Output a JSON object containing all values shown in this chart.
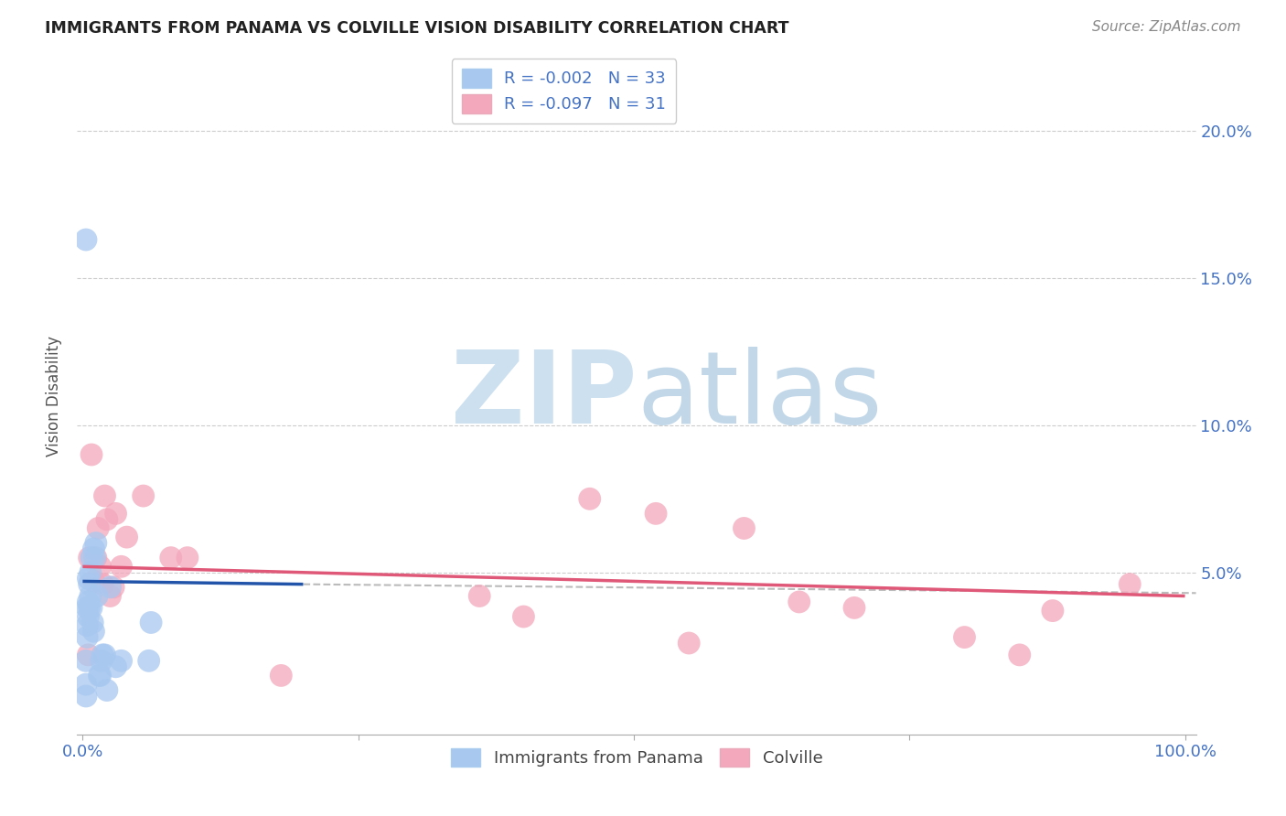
{
  "title": "IMMIGRANTS FROM PANAMA VS COLVILLE VISION DISABILITY CORRELATION CHART",
  "source": "Source: ZipAtlas.com",
  "ylabel": "Vision Disability",
  "legend_label1": "Immigrants from Panama",
  "legend_label2": "Colville",
  "R1": -0.002,
  "N1": 33,
  "R2": -0.097,
  "N2": 31,
  "color1": "#a8c8f0",
  "color2": "#f4a8bc",
  "line_color1": "#2255aa",
  "line_color2": "#e05878",
  "line_color_grey": "#bbbbbb",
  "watermark_color": "#cce0f0",
  "xlim": [
    -0.005,
    1.01
  ],
  "ylim": [
    -0.005,
    0.225
  ],
  "ytick_vals": [
    0.05,
    0.1,
    0.15,
    0.2
  ],
  "ytick_labels": [
    "5.0%",
    "10.0%",
    "15.0%",
    "20.0%"
  ],
  "xtick_vals": [
    0.0,
    1.0
  ],
  "xtick_labels": [
    "0.0%",
    "100.0%"
  ],
  "blue_x": [
    0.003,
    0.003,
    0.003,
    0.004,
    0.004,
    0.004,
    0.005,
    0.005,
    0.005,
    0.006,
    0.006,
    0.007,
    0.007,
    0.008,
    0.008,
    0.009,
    0.01,
    0.01,
    0.011,
    0.012,
    0.013,
    0.015,
    0.016,
    0.017,
    0.018,
    0.02,
    0.022,
    0.025,
    0.03,
    0.035,
    0.06,
    0.062,
    0.003
  ],
  "blue_y": [
    0.008,
    0.012,
    0.02,
    0.028,
    0.032,
    0.038,
    0.035,
    0.04,
    0.048,
    0.038,
    0.046,
    0.042,
    0.05,
    0.038,
    0.055,
    0.033,
    0.03,
    0.058,
    0.055,
    0.06,
    0.042,
    0.015,
    0.015,
    0.02,
    0.022,
    0.022,
    0.01,
    0.045,
    0.018,
    0.02,
    0.02,
    0.033,
    0.163
  ],
  "pink_x": [
    0.005,
    0.006,
    0.008,
    0.01,
    0.012,
    0.014,
    0.016,
    0.018,
    0.02,
    0.022,
    0.025,
    0.028,
    0.03,
    0.035,
    0.04,
    0.055,
    0.08,
    0.095,
    0.18,
    0.36,
    0.4,
    0.46,
    0.52,
    0.55,
    0.6,
    0.65,
    0.7,
    0.8,
    0.85,
    0.88,
    0.95
  ],
  "pink_y": [
    0.022,
    0.055,
    0.09,
    0.047,
    0.055,
    0.065,
    0.052,
    0.046,
    0.076,
    0.068,
    0.042,
    0.045,
    0.07,
    0.052,
    0.062,
    0.076,
    0.055,
    0.055,
    0.015,
    0.042,
    0.035,
    0.075,
    0.07,
    0.026,
    0.065,
    0.04,
    0.038,
    0.028,
    0.022,
    0.037,
    0.046
  ],
  "blue_line_x": [
    0.0,
    0.2
  ],
  "blue_line_y": [
    0.047,
    0.046
  ],
  "grey_line_x": [
    0.2,
    1.01
  ],
  "grey_line_y": [
    0.046,
    0.043
  ],
  "pink_line_x": [
    0.0,
    1.0
  ],
  "pink_line_y": [
    0.052,
    0.042
  ]
}
